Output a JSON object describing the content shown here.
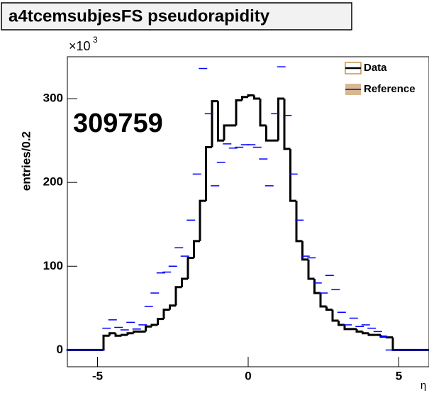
{
  "chart_data": {
    "type": "histogram",
    "title": "a4tcemsubjesFS pseudorapidity",
    "y_label": "entries/0.2",
    "y_multiplier": "×10",
    "y_multiplier_exp": "3",
    "x_label": "η",
    "annotation": "309759",
    "legend": "top-right",
    "xlim": [
      -6,
      6
    ],
    "ylim": [
      -20,
      350
    ],
    "xticks": [
      -5,
      0,
      5
    ],
    "yticks": [
      0,
      100,
      200,
      300
    ],
    "bins": [
      -6,
      -5.8,
      -5.6,
      -5.4,
      -5.2,
      -5,
      -4.8,
      -4.6,
      -4.4,
      -4.2,
      -4,
      -3.8,
      -3.6,
      -3.4,
      -3.2,
      -3,
      -2.8,
      -2.6,
      -2.4,
      -2.2,
      -2,
      -1.8,
      -1.6,
      -1.4,
      -1.2,
      -1,
      -0.8,
      -0.6,
      -0.4,
      -0.2,
      0,
      0.2,
      0.4,
      0.6,
      0.8,
      1,
      1.2,
      1.4,
      1.6,
      1.8,
      2,
      2.2,
      2.4,
      2.6,
      2.8,
      3,
      3.2,
      3.4,
      3.6,
      3.8,
      4,
      4.2,
      4.4,
      4.6,
      4.8,
      5,
      5.2,
      5.4,
      5.6,
      5.8,
      6
    ],
    "series": [
      {
        "name": "Data",
        "color": "#000000",
        "values": [
          0,
          0,
          0,
          0,
          0,
          0,
          17,
          20,
          17,
          18,
          20,
          22,
          22,
          28,
          30,
          37,
          48,
          53,
          75,
          85,
          110,
          130,
          178,
          242,
          297,
          250,
          268,
          268,
          298,
          302,
          304,
          300,
          268,
          250,
          250,
          300,
          240,
          178,
          130,
          108,
          85,
          68,
          52,
          48,
          35,
          30,
          25,
          25,
          22,
          20,
          18,
          18,
          16,
          15,
          0,
          0,
          0,
          0,
          0,
          0
        ]
      },
      {
        "name": "Reference",
        "color": "#0000ff",
        "values": [
          0,
          0,
          0,
          0,
          0,
          0,
          26,
          36,
          27,
          24,
          33,
          25,
          30,
          52,
          68,
          92,
          93,
          100,
          122,
          112,
          155,
          210,
          336,
          282,
          196,
          224,
          246,
          241,
          242,
          245,
          245,
          242,
          228,
          196,
          282,
          338,
          280,
          210,
          155,
          112,
          110,
          80,
          68,
          89,
          72,
          45,
          30,
          38,
          28,
          30,
          26,
          22,
          16,
          0,
          0,
          0,
          0,
          0,
          0,
          0
        ]
      }
    ]
  }
}
